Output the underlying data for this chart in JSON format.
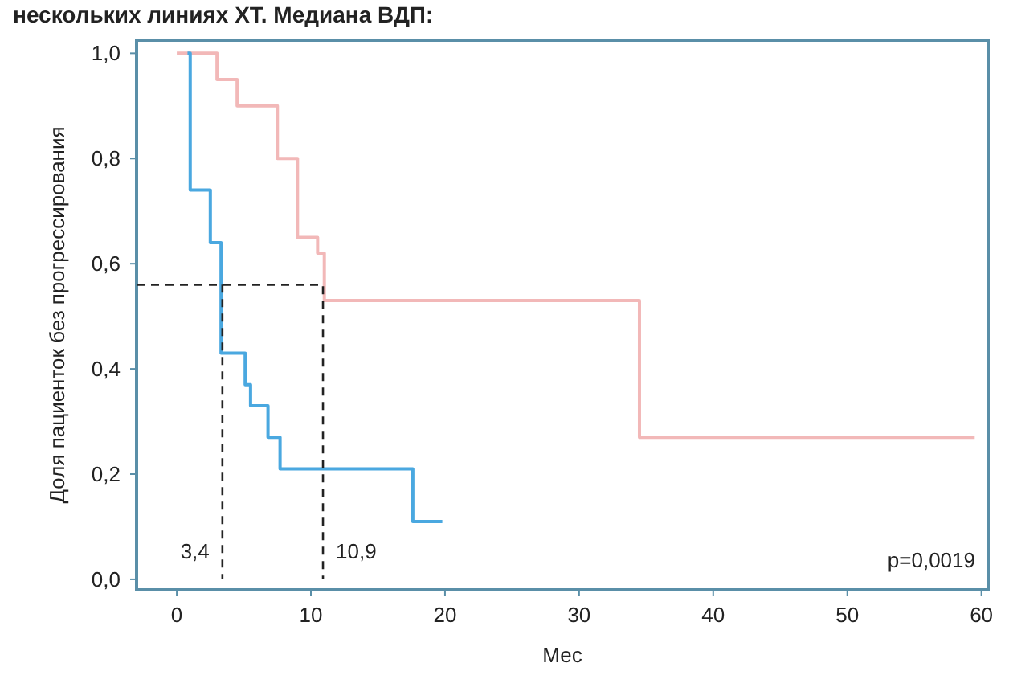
{
  "chart_data": {
    "type": "step",
    "title": "нескольких линиях ХТ. Медиана ВДП:",
    "xlabel": "Мес",
    "ylabel": "Доля пациенток без прогрессирования",
    "xlim": [
      -3,
      60.5
    ],
    "ylim": [
      -0.02,
      1.025
    ],
    "xticks": [
      0,
      10,
      20,
      30,
      40,
      50,
      60
    ],
    "yticks": [
      {
        "value": 0,
        "label": "0,0"
      },
      {
        "value": 0.2,
        "label": "0,2"
      },
      {
        "value": 0.4,
        "label": "0,4"
      },
      {
        "value": 0.6,
        "label": "0,6"
      },
      {
        "value": 0.8,
        "label": "0,8"
      },
      {
        "value": 1,
        "label": "1,0"
      }
    ],
    "grid": false,
    "marker": "none",
    "series": [
      {
        "color": "#f2b8b8",
        "x": [
          0,
          3,
          4.5,
          7.5,
          9,
          10.5,
          11,
          34.5,
          59.5
        ],
        "values": [
          1,
          0.95,
          0.9,
          0.8,
          0.65,
          0.62,
          0.53,
          0.27,
          0.27
        ]
      },
      {
        "color": "#4aa8e0",
        "x": [
          0.8,
          1.0,
          2.5,
          3.3,
          5.1,
          5.5,
          6.8,
          7.7,
          17.6,
          19.8
        ],
        "values": [
          1.0,
          0.74,
          0.64,
          0.43,
          0.37,
          0.33,
          0.27,
          0.21,
          0.11,
          0.11
        ]
      },
      {
        "type": "line",
        "line_style": "dashed",
        "color": "#222222",
        "x": [
          -3,
          10.9,
          10.9
        ],
        "values": [
          0.56,
          0.56,
          0
        ]
      },
      {
        "type": "line",
        "line_style": "dashed",
        "color": "#222222",
        "x": [
          3.4,
          3.4
        ],
        "values": [
          0.56,
          0
        ]
      }
    ],
    "annotations": [
      {
        "text": "3,4",
        "x": 3.4,
        "y": 0.04
      },
      {
        "text": "10,9",
        "x": 10.9,
        "y": 0.04
      },
      "p=0,0019"
    ]
  }
}
